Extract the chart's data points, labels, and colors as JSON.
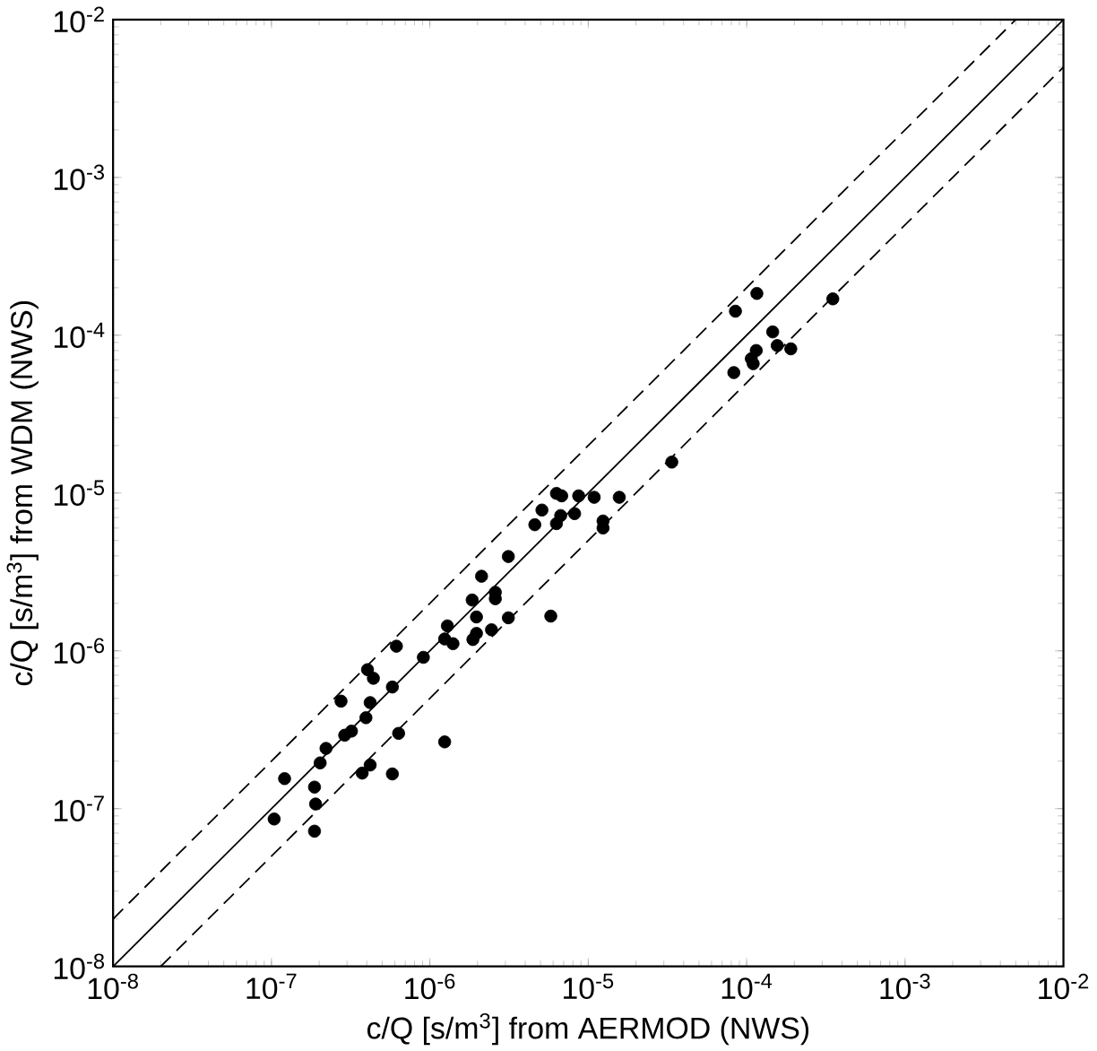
{
  "chart_data": {
    "type": "scatter",
    "xlabel": "c/Q [s/m$^{3}$] from AERMOD (NWS)",
    "ylabel": "c/Q [s/m$^{3}$] from WDM (NWS)",
    "log": "xy",
    "xlim": [
      1e-08,
      0.01
    ],
    "ylim": [
      1e-08,
      0.01
    ],
    "xticks": [
      {
        "value": 1e-08,
        "label": "10$^{-8}$"
      },
      {
        "value": 1e-07,
        "label": "10$^{-7}$"
      },
      {
        "value": 1e-06,
        "label": "10$^{-6}$"
      },
      {
        "value": 1e-05,
        "label": "10$^{-5}$"
      },
      {
        "value": 0.0001,
        "label": "10$^{-4}$"
      },
      {
        "value": 0.001,
        "label": "10$^{-3}$"
      },
      {
        "value": 0.01,
        "label": "10$^{-2}$"
      }
    ],
    "yticks": [
      {
        "value": 1e-08,
        "label": "10$^{-8}$"
      },
      {
        "value": 1e-07,
        "label": "10$^{-7}$"
      },
      {
        "value": 1e-06,
        "label": "10$^{-6}$"
      },
      {
        "value": 1e-05,
        "label": "10$^{-5}$"
      },
      {
        "value": 0.0001,
        "label": "10$^{-4}$"
      },
      {
        "value": 0.001,
        "label": "10$^{-3}$"
      },
      {
        "value": 0.01,
        "label": "10$^{-2}$"
      }
    ],
    "series": [
      {
        "type": "line",
        "color": "#000000",
        "line_style": "solid",
        "marker": "none",
        "x": [
          1e-08,
          0.01
        ],
        "values": [
          1e-08,
          0.01
        ]
      },
      {
        "type": "line",
        "color": "#000000",
        "line_style": "dashed",
        "marker": "none",
        "x": [
          1e-08,
          0.005
        ],
        "values": [
          2e-08,
          0.01
        ]
      },
      {
        "type": "line",
        "color": "#000000",
        "line_style": "dashed",
        "marker": "none",
        "x": [
          2e-08,
          0.01
        ],
        "values": [
          1e-08,
          0.005
        ]
      },
      {
        "color": "#000000",
        "marker": "circle",
        "x": [
          1.04e-07,
          1.21e-07,
          1.87e-07,
          1.9e-07,
          1.87e-07,
          2.03e-07,
          2.21e-07,
          2.75e-07,
          2.9e-07,
          3.2e-07,
          3.74e-07,
          4.2e-07,
          3.95e-07,
          4.2e-07,
          4.04e-07,
          4.4e-07,
          5.8e-07,
          5.8e-07,
          6.35e-07,
          6.15e-07,
          9.1e-07,
          1.24e-06,
          1.24e-06,
          1.29e-06,
          1.4e-06,
          1.87e-06,
          1.97e-06,
          1.85e-06,
          1.97e-06,
          2.12e-06,
          2.45e-06,
          2.59e-06,
          2.59e-06,
          3.13e-06,
          3.13e-06,
          5.8e-06,
          4.6e-06,
          5.1e-06,
          6.3e-06,
          6.7e-06,
          6.3e-06,
          6.8e-06,
          8.2e-06,
          8.7e-06,
          1.09e-05,
          1.24e-05,
          1.24e-05,
          1.57e-05,
          3.37e-05,
          8.3e-05,
          8.5e-05,
          0.000116,
          0.000115,
          0.000107,
          0.00011,
          0.000146,
          0.000156,
          0.00019,
          0.00035
        ],
        "values": [
          8.6e-08,
          1.55e-07,
          1.37e-07,
          1.07e-07,
          7.2e-08,
          1.95e-07,
          2.41e-07,
          4.8e-07,
          2.92e-07,
          3.1e-07,
          1.68e-07,
          1.89e-07,
          3.77e-07,
          4.7e-07,
          7.6e-07,
          6.7e-07,
          5.9e-07,
          1.66e-07,
          3e-07,
          1.07e-06,
          9.1e-07,
          2.65e-07,
          1.19e-06,
          1.44e-06,
          1.11e-06,
          1.18e-06,
          1.29e-06,
          2.1e-06,
          1.64e-06,
          2.97e-06,
          1.36e-06,
          2.35e-06,
          2.14e-06,
          1.62e-06,
          3.96e-06,
          1.66e-06,
          6.3e-06,
          7.8e-06,
          6.4e-06,
          7.2e-06,
          9.95e-06,
          9.6e-06,
          7.4e-06,
          9.6e-06,
          9.4e-06,
          6e-06,
          6.65e-06,
          9.4e-06,
          1.57e-05,
          5.8e-05,
          0.000142,
          0.000184,
          8e-05,
          7.1e-05,
          6.6e-05,
          0.000105,
          8.6e-05,
          8.2e-05,
          0.00017
        ]
      }
    ]
  }
}
